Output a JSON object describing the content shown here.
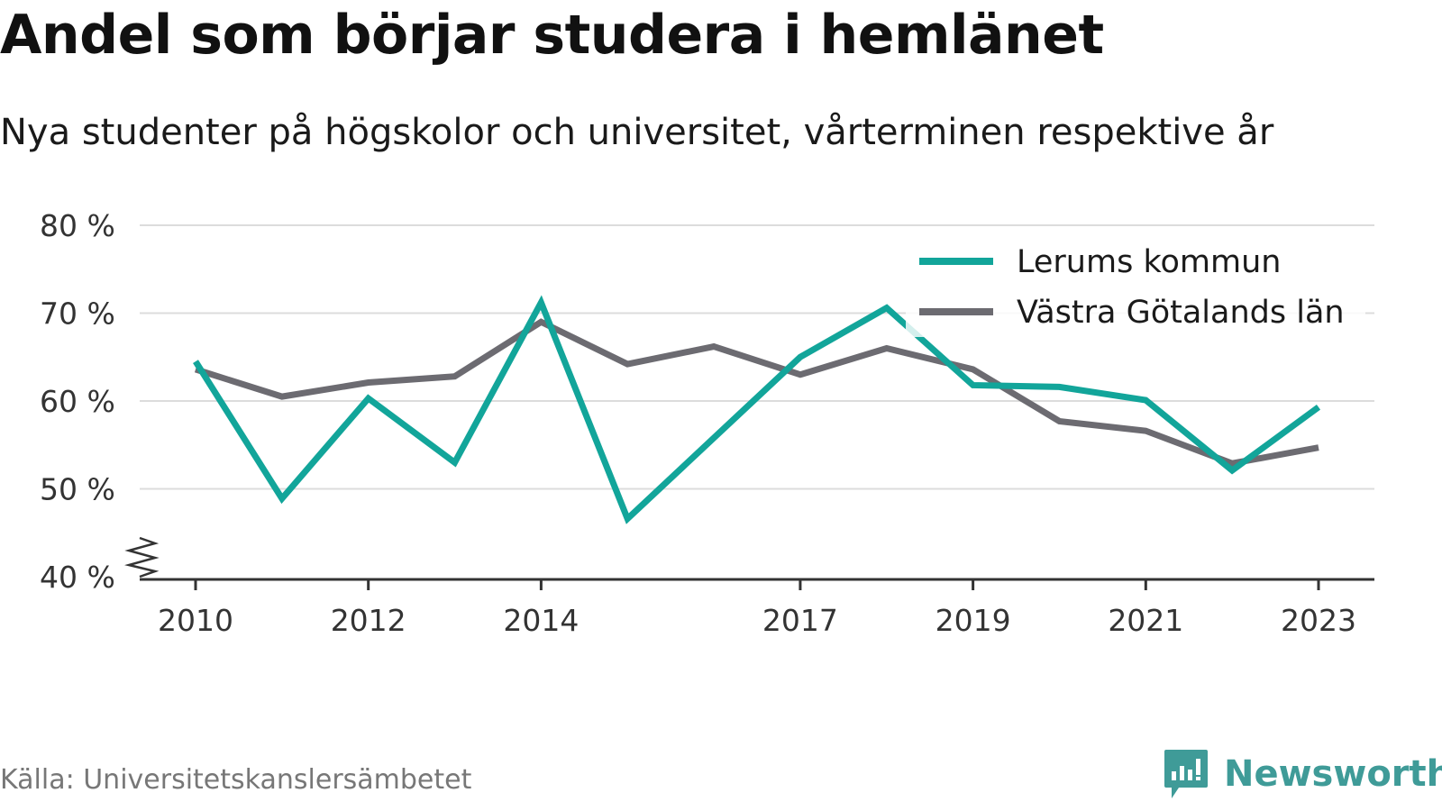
{
  "title": "Andel som börjar studera i hemlänet",
  "subtitle": "Nya studenter på högskolor och universitet, vårterminen respektive år",
  "source": "Källa: Universitetskanslersämbetet",
  "brand": "Newsworthy",
  "colors": {
    "lerum": "#12a59a",
    "vgl": "#6c6b71",
    "grid": "#dcdcdc",
    "brand": "#3f9b98"
  },
  "chart_data": {
    "type": "line",
    "x": [
      2010,
      2011,
      2012,
      2013,
      2014,
      2015,
      2016,
      2017,
      2018,
      2019,
      2020,
      2021,
      2022,
      2023
    ],
    "x_tick_labels": [
      "2010",
      "2012",
      "2014",
      "2017",
      "2019",
      "2021",
      "2023"
    ],
    "x_ticks": [
      2010,
      2012,
      2014,
      2017,
      2019,
      2021,
      2023
    ],
    "y_ticks": [
      40,
      50,
      60,
      70,
      80
    ],
    "y_tick_labels": [
      "40 %",
      "50 %",
      "60 %",
      "70 %",
      "80 %"
    ],
    "ylim": [
      40,
      80
    ],
    "y_axis_break": true,
    "grid": true,
    "legend_position": "top-right",
    "series": [
      {
        "name": "Lerums kommun",
        "color": "#12a59a",
        "values": [
          64.5,
          48.9,
          60.3,
          53.0,
          71.2,
          46.6,
          55.8,
          65.0,
          70.6,
          61.8,
          61.6,
          60.1,
          52.1,
          59.3
        ]
      },
      {
        "name": "Västra Götalands län",
        "color": "#6c6b71",
        "values": [
          63.6,
          60.5,
          62.1,
          62.8,
          69.0,
          64.2,
          66.2,
          63.0,
          66.0,
          63.6,
          57.7,
          56.6,
          52.9,
          54.7
        ]
      }
    ]
  }
}
